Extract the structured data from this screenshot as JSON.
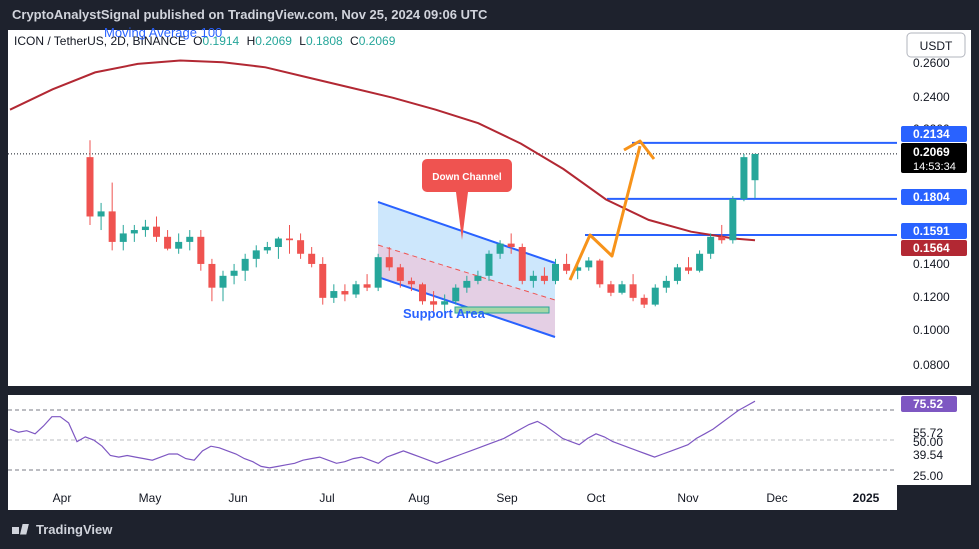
{
  "header": {
    "published": "CryptoAnalystSignal published on TradingView.com, Nov 25, 2024 09:06 UTC"
  },
  "symbol": {
    "name": "ICON / TetherUS, 2D, BINANCE",
    "o_label": "O",
    "o": "0.1914",
    "h_label": "H",
    "h": "0.2069",
    "l_label": "L",
    "l": "0.1808",
    "c_label": "C",
    "c": "0.2069"
  },
  "ma_label": "Moving Average 100",
  "currency_button": "USDT",
  "price_axis": {
    "ticks": [
      "0.2600",
      "0.2400",
      "0.2200",
      "0.1400",
      "0.1200",
      "0.1000",
      "0.0800"
    ]
  },
  "price_labels": {
    "r1": {
      "value": "0.2134",
      "color": "#2962ff"
    },
    "current": {
      "value": "0.2069",
      "countdown": "14:53:34",
      "color": "#000000"
    },
    "r2": {
      "value": "0.1804",
      "color": "#2962ff"
    },
    "r3": {
      "value": "0.1591",
      "color": "#2962ff"
    },
    "ma": {
      "value": "0.1564",
      "color": "#b22833"
    }
  },
  "annotations": {
    "down_channel": "Down Channel",
    "support_area": "Support Area"
  },
  "rsi_axis": {
    "value": "75.52",
    "ticks": [
      "55.72",
      "50.00",
      "39.54",
      "25.00"
    ]
  },
  "time_axis": [
    "Apr",
    "May",
    "Jun",
    "Jul",
    "Aug",
    "Sep",
    "Oct",
    "Nov",
    "Dec",
    "2025"
  ],
  "footer": {
    "brand": "TradingView"
  },
  "colors": {
    "up": "#26a69a",
    "down": "#ef5350",
    "ma": "#b22833",
    "level": "#2962ff",
    "rsi": "#7e57c2",
    "projection": "#f7931a"
  },
  "chart_data": [
    {
      "type": "candlestick",
      "ylim": [
        0.07,
        0.28
      ],
      "ma_100": [
        [
          0,
          0.233
        ],
        [
          10,
          0.245
        ],
        [
          20,
          0.255
        ],
        [
          30,
          0.26
        ],
        [
          40,
          0.262
        ],
        [
          50,
          0.261
        ],
        [
          60,
          0.258
        ],
        [
          70,
          0.252
        ],
        [
          80,
          0.246
        ],
        [
          90,
          0.24
        ],
        [
          100,
          0.233
        ],
        [
          110,
          0.225
        ],
        [
          120,
          0.213
        ],
        [
          130,
          0.198
        ],
        [
          140,
          0.18
        ],
        [
          150,
          0.168
        ],
        [
          160,
          0.161
        ],
        [
          170,
          0.157
        ],
        [
          175,
          0.156
        ]
      ],
      "candles": [
        [
          0.205,
          0.215,
          0.165,
          0.17
        ],
        [
          0.17,
          0.178,
          0.162,
          0.173
        ],
        [
          0.173,
          0.19,
          0.15,
          0.155
        ],
        [
          0.155,
          0.165,
          0.15,
          0.16
        ],
        [
          0.16,
          0.165,
          0.155,
          0.162
        ],
        [
          0.162,
          0.168,
          0.158,
          0.164
        ],
        [
          0.164,
          0.17,
          0.155,
          0.158
        ],
        [
          0.158,
          0.162,
          0.15,
          0.151
        ],
        [
          0.151,
          0.16,
          0.148,
          0.155
        ],
        [
          0.155,
          0.162,
          0.15,
          0.158
        ],
        [
          0.158,
          0.162,
          0.138,
          0.142
        ],
        [
          0.142,
          0.145,
          0.12,
          0.128
        ],
        [
          0.128,
          0.138,
          0.12,
          0.135
        ],
        [
          0.135,
          0.142,
          0.13,
          0.138
        ],
        [
          0.138,
          0.148,
          0.132,
          0.145
        ],
        [
          0.145,
          0.153,
          0.14,
          0.15
        ],
        [
          0.15,
          0.155,
          0.148,
          0.152
        ],
        [
          0.152,
          0.158,
          0.145,
          0.157
        ],
        [
          0.157,
          0.165,
          0.148,
          0.156
        ],
        [
          0.156,
          0.16,
          0.145,
          0.148
        ],
        [
          0.148,
          0.152,
          0.14,
          0.142
        ],
        [
          0.142,
          0.146,
          0.118,
          0.122
        ],
        [
          0.122,
          0.13,
          0.119,
          0.126
        ],
        [
          0.126,
          0.13,
          0.12,
          0.124
        ],
        [
          0.124,
          0.132,
          0.122,
          0.13
        ],
        [
          0.13,
          0.136,
          0.126,
          0.128
        ],
        [
          0.128,
          0.148,
          0.126,
          0.146
        ],
        [
          0.146,
          0.152,
          0.138,
          0.14
        ],
        [
          0.14,
          0.142,
          0.128,
          0.132
        ],
        [
          0.132,
          0.134,
          0.126,
          0.13
        ],
        [
          0.13,
          0.131,
          0.118,
          0.12
        ],
        [
          0.12,
          0.126,
          0.114,
          0.118
        ],
        [
          0.118,
          0.124,
          0.113,
          0.12
        ],
        [
          0.12,
          0.13,
          0.118,
          0.128
        ],
        [
          0.128,
          0.135,
          0.125,
          0.132
        ],
        [
          0.132,
          0.138,
          0.13,
          0.135
        ],
        [
          0.135,
          0.15,
          0.132,
          0.148
        ],
        [
          0.148,
          0.156,
          0.145,
          0.154
        ],
        [
          0.154,
          0.16,
          0.148,
          0.152
        ],
        [
          0.152,
          0.154,
          0.13,
          0.132
        ],
        [
          0.132,
          0.138,
          0.128,
          0.135
        ],
        [
          0.135,
          0.14,
          0.13,
          0.132
        ],
        [
          0.132,
          0.145,
          0.13,
          0.142
        ],
        [
          0.142,
          0.148,
          0.136,
          0.138
        ],
        [
          0.138,
          0.142,
          0.133,
          0.14
        ],
        [
          0.14,
          0.146,
          0.138,
          0.144
        ],
        [
          0.144,
          0.145,
          0.128,
          0.13
        ],
        [
          0.13,
          0.132,
          0.123,
          0.125
        ],
        [
          0.125,
          0.132,
          0.124,
          0.13
        ],
        [
          0.13,
          0.136,
          0.12,
          0.122
        ],
        [
          0.122,
          0.124,
          0.116,
          0.118
        ],
        [
          0.118,
          0.13,
          0.117,
          0.128
        ],
        [
          0.128,
          0.135,
          0.125,
          0.132
        ],
        [
          0.132,
          0.142,
          0.13,
          0.14
        ],
        [
          0.14,
          0.146,
          0.136,
          0.138
        ],
        [
          0.138,
          0.15,
          0.137,
          0.148
        ],
        [
          0.148,
          0.16,
          0.145,
          0.158
        ],
        [
          0.158,
          0.165,
          0.154,
          0.156
        ],
        [
          0.156,
          0.182,
          0.154,
          0.1804
        ],
        [
          0.1804,
          0.2069,
          0.179,
          0.205
        ],
        [
          0.1914,
          0.2069,
          0.1808,
          0.2069
        ]
      ],
      "levels": [
        0.2134,
        0.1804,
        0.1591
      ]
    },
    {
      "type": "line",
      "name": "RSI",
      "ylim": [
        22,
        80
      ],
      "bands": [
        30,
        50,
        70
      ],
      "values": [
        58,
        56,
        57,
        55,
        60,
        66,
        66,
        62,
        50,
        53,
        51,
        47,
        41,
        40,
        41,
        40,
        39,
        38,
        40,
        42,
        42,
        39,
        38,
        44,
        47,
        46,
        44,
        42,
        39,
        37,
        34,
        33,
        34,
        35,
        36,
        38,
        39,
        40,
        38,
        36,
        37,
        39,
        40,
        38,
        36,
        40,
        42,
        44,
        42,
        40,
        38,
        36,
        38,
        40,
        42,
        44,
        46,
        48,
        50,
        52,
        55,
        58,
        61,
        63,
        60,
        56,
        52,
        50,
        48,
        52,
        55,
        53,
        50,
        48,
        46,
        44,
        42,
        40,
        42,
        44,
        46,
        48,
        52,
        55,
        58,
        62,
        66,
        70,
        73,
        76
      ]
    }
  ]
}
